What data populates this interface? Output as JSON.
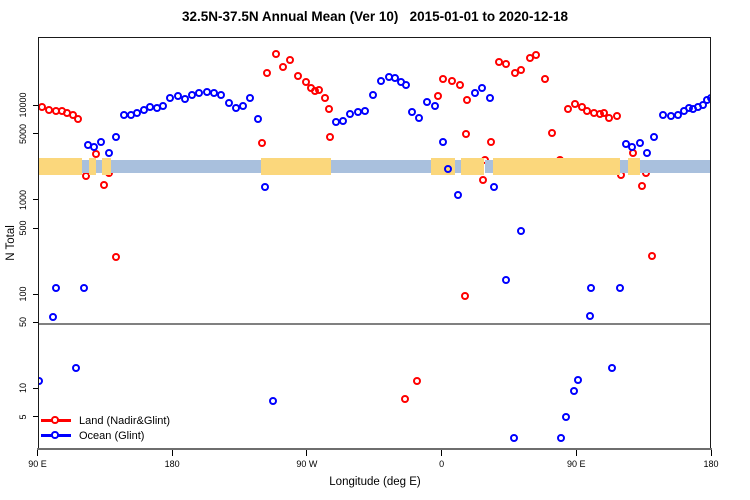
{
  "chart_data": {
    "type": "scatter",
    "title": "32.5N-37.5N Annual Mean (Ver 10)   2015-01-01 to 2020-12-18",
    "xlabel": "Longitude (deg E)",
    "ylabel": "N Total",
    "x_axis": {
      "units": "deg E (continuous 90 to 540)",
      "min": 90,
      "max": 540,
      "ticks": [
        {
          "lon": 90,
          "label": "90 E"
        },
        {
          "lon": 180,
          "label": "180"
        },
        {
          "lon": 270,
          "label": "90 W"
        },
        {
          "lon": 360,
          "label": "0"
        },
        {
          "lon": 450,
          "label": "90 E"
        },
        {
          "lon": 540,
          "label": "180"
        }
      ]
    },
    "y_axis": {
      "scale": "log10",
      "range": [
        2.3,
        52000
      ],
      "ticks": [
        10000,
        5000,
        1000,
        500,
        100,
        50,
        10,
        5
      ]
    },
    "reference_line": {
      "n_value": 50,
      "color": "#808080"
    },
    "surface_type_band": {
      "description": "land/ocean strip at N ~2500",
      "center_n_value": 2500,
      "land_color": "#FBD77C",
      "ocean_color": "#A9C0DD",
      "segments": [
        {
          "type": "land",
          "from": 90,
          "to": 119
        },
        {
          "type": "ocean",
          "from": 119,
          "to": 123.8
        },
        {
          "type": "land",
          "from": 123.8,
          "to": 128.5
        },
        {
          "type": "ocean",
          "from": 128.5,
          "to": 132.5
        },
        {
          "type": "land",
          "from": 132.5,
          "to": 138.5
        },
        {
          "type": "ocean",
          "from": 138.5,
          "to": 238.5
        },
        {
          "type": "land",
          "from": 238.5,
          "to": 285.5
        },
        {
          "type": "ocean",
          "from": 285.5,
          "to": 352
        },
        {
          "type": "land",
          "from": 352,
          "to": 368
        },
        {
          "type": "ocean",
          "from": 368,
          "to": 372.5
        },
        {
          "type": "land",
          "from": 372.5,
          "to": 388
        },
        {
          "type": "ocean",
          "from": 388,
          "to": 394
        },
        {
          "type": "land",
          "from": 394,
          "to": 478.5
        },
        {
          "type": "ocean",
          "from": 478.5,
          "to": 484
        },
        {
          "type": "land",
          "from": 484,
          "to": 492
        },
        {
          "type": "ocean",
          "from": 492,
          "to": 540
        }
      ]
    },
    "series": [
      {
        "name": "Land (Nadir&Glint)",
        "color": "#FF0000",
        "symbol": "open-circle",
        "points": [
          [
            92.7,
            9900
          ],
          [
            97.1,
            9150
          ],
          [
            101.6,
            8930
          ],
          [
            105.6,
            8930
          ],
          [
            109.4,
            8480
          ],
          [
            113.2,
            8000
          ],
          [
            116.7,
            7330
          ],
          [
            121.6,
            1830
          ],
          [
            128.3,
            3100
          ],
          [
            133.8,
            1470
          ],
          [
            137.0,
            1950
          ],
          [
            141.6,
            253
          ],
          [
            239.5,
            4110
          ],
          [
            243.0,
            22300
          ],
          [
            248.5,
            35400
          ],
          [
            253.7,
            26000
          ],
          [
            257.9,
            31000
          ],
          [
            263.6,
            20900
          ],
          [
            268.7,
            18100
          ],
          [
            272.1,
            15700
          ],
          [
            275.1,
            14500
          ],
          [
            277.8,
            14700
          ],
          [
            281.4,
            12200
          ],
          [
            284.1,
            9270
          ],
          [
            284.6,
            4710
          ],
          [
            335.2,
            7.8
          ],
          [
            343.0,
            12.1
          ],
          [
            375.2,
            98
          ],
          [
            357.3,
            12800
          ],
          [
            360.6,
            19400
          ],
          [
            366.5,
            18600
          ],
          [
            371.5,
            16600
          ],
          [
            376.2,
            11500
          ],
          [
            375.7,
            5090
          ],
          [
            388.3,
            2710
          ],
          [
            387.1,
            1630
          ],
          [
            392.5,
            4190
          ],
          [
            398.1,
            29400
          ],
          [
            402.7,
            28000
          ],
          [
            408.4,
            22300
          ],
          [
            412.5,
            24400
          ],
          [
            418.8,
            32600
          ],
          [
            422.6,
            34900
          ],
          [
            428.6,
            19500
          ],
          [
            433.2,
            5150
          ],
          [
            438.8,
            2720
          ],
          [
            443.9,
            9430
          ],
          [
            448.5,
            10500
          ],
          [
            453.1,
            9910
          ],
          [
            456.9,
            8910
          ],
          [
            461.1,
            8400
          ],
          [
            465.2,
            8210
          ],
          [
            467.8,
            8530
          ],
          [
            471.4,
            7510
          ],
          [
            476.4,
            7900
          ],
          [
            487.6,
            3160
          ],
          [
            479.6,
            1880
          ],
          [
            495.8,
            1970
          ],
          [
            493.1,
            1440
          ],
          [
            500.1,
            256
          ]
        ]
      },
      {
        "name": "Ocean (Glint)",
        "color": "#0000FF",
        "symbol": "open-circle",
        "points": [
          [
            123.1,
            3870
          ],
          [
            127.1,
            3660
          ],
          [
            131.7,
            4150
          ],
          [
            137.1,
            3210
          ],
          [
            142.1,
            4690
          ],
          [
            147.4,
            8040
          ],
          [
            151.8,
            8040
          ],
          [
            156.1,
            8450
          ],
          [
            160.5,
            9170
          ],
          [
            164.8,
            9730
          ],
          [
            169.2,
            9500
          ],
          [
            173.2,
            10100
          ],
          [
            178.3,
            12200
          ],
          [
            183.2,
            12800
          ],
          [
            188.3,
            11900
          ],
          [
            192.7,
            13300
          ],
          [
            197.7,
            13700
          ],
          [
            202.4,
            14300
          ],
          [
            207.2,
            13700
          ],
          [
            212.1,
            13000
          ],
          [
            217.3,
            10700
          ],
          [
            222.2,
            9550
          ],
          [
            226.6,
            10100
          ],
          [
            231.3,
            12100
          ],
          [
            237.0,
            7370
          ],
          [
            241.3,
            1400
          ],
          [
            289.1,
            6820
          ],
          [
            293.7,
            6940
          ],
          [
            298.3,
            8210
          ],
          [
            303.3,
            8770
          ],
          [
            308.1,
            8980
          ],
          [
            313.9,
            13200
          ],
          [
            318.9,
            18600
          ],
          [
            324.1,
            20300
          ],
          [
            328.0,
            19700
          ],
          [
            332.6,
            17900
          ],
          [
            336.0,
            16700
          ],
          [
            339.5,
            8770
          ],
          [
            344.5,
            7490
          ],
          [
            350.0,
            11200
          ],
          [
            355.0,
            10100
          ],
          [
            360.1,
            4190
          ],
          [
            363.6,
            2180
          ],
          [
            370.4,
            1150
          ],
          [
            381.9,
            13800
          ],
          [
            386.3,
            15500
          ],
          [
            391.6,
            12300
          ],
          [
            394.7,
            1380
          ],
          [
            402.7,
            144
          ],
          [
            412.4,
            471
          ],
          [
            407.9,
            3.05
          ],
          [
            439.0,
            3.05
          ],
          [
            442.4,
            5.05
          ],
          [
            448.0,
            9.5
          ],
          [
            450.7,
            12.5
          ],
          [
            458.4,
            60
          ],
          [
            459.5,
            119
          ],
          [
            473.5,
            16.9
          ],
          [
            478.4,
            119
          ],
          [
            482.5,
            3960
          ],
          [
            487.0,
            3650
          ],
          [
            492.0,
            4060
          ],
          [
            497.0,
            3220
          ],
          [
            501.4,
            4770
          ],
          [
            507.7,
            8040
          ],
          [
            512.6,
            7850
          ],
          [
            517.6,
            8130
          ],
          [
            521.3,
            8870
          ],
          [
            524.6,
            9500
          ],
          [
            527.3,
            9280
          ],
          [
            530.6,
            9840
          ],
          [
            533.9,
            10300
          ],
          [
            536.9,
            11600
          ],
          [
            539.6,
            12200
          ],
          [
            101.5,
            119
          ],
          [
            120.4,
            119
          ],
          [
            99.9,
            58.8
          ],
          [
            114.9,
            16.7
          ],
          [
            90.3,
            12.2
          ],
          [
            247.0,
            7.4
          ]
        ]
      }
    ],
    "legend": {
      "position": "bottom-left"
    }
  }
}
